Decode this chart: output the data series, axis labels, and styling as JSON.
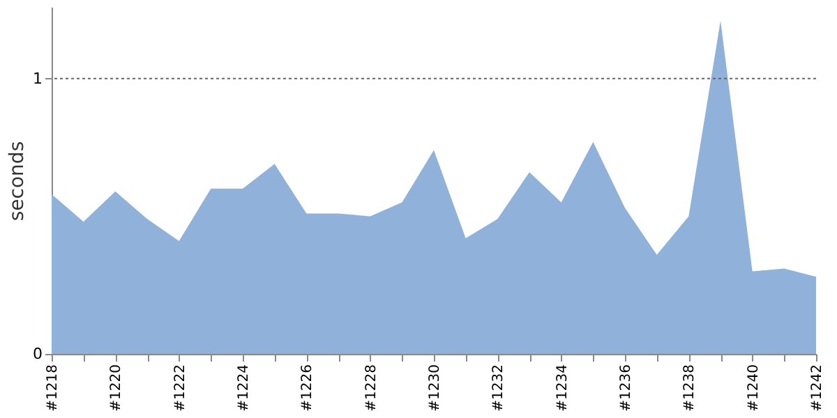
{
  "chart_data": {
    "type": "area",
    "ylabel": "seconds",
    "categories": [
      "#1218",
      null,
      "#1220",
      null,
      "#1222",
      null,
      "#1224",
      null,
      "#1226",
      null,
      "#1228",
      null,
      "#1230",
      null,
      "#1232",
      null,
      "#1234",
      null,
      "#1236",
      null,
      "#1238",
      null,
      "#1240",
      null,
      "#1242"
    ],
    "series": [
      {
        "color": "#8fb1da",
        "values": [
          0.58,
          0.48,
          0.59,
          0.49,
          0.41,
          0.6,
          0.6,
          0.69,
          0.51,
          0.51,
          0.5,
          0.55,
          0.74,
          0.42,
          0.49,
          0.66,
          0.55,
          0.77,
          0.53,
          0.36,
          0.5,
          1.21,
          0.3,
          0.31,
          0.28
        ]
      }
    ],
    "ylim": [
      0,
      1.26
    ],
    "yticks": [
      0,
      1
    ],
    "ref_lines": [
      {
        "axis": "y",
        "value": 1,
        "color": "#666666",
        "line_style": "dotted"
      }
    ],
    "grid": false
  }
}
